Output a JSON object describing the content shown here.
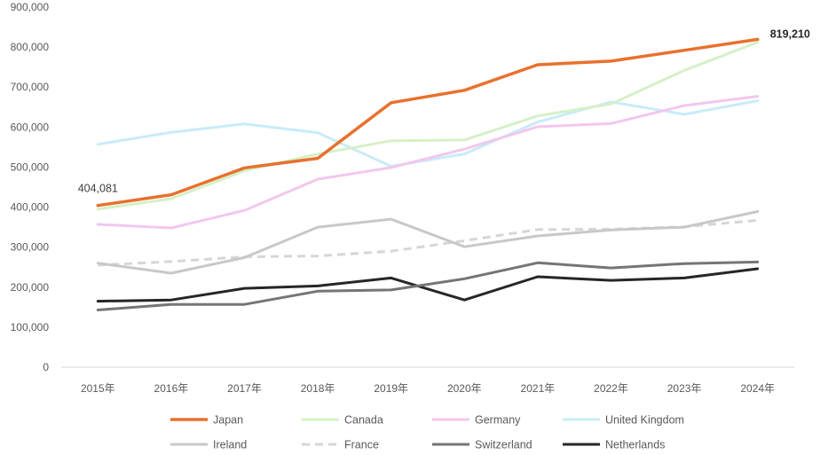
{
  "chart_data": {
    "type": "line",
    "title": "",
    "xlabel": "",
    "ylabel": "",
    "ylim": [
      0,
      900000
    ],
    "yticks": [
      0,
      100000,
      200000,
      300000,
      400000,
      500000,
      600000,
      700000,
      800000,
      900000
    ],
    "ytick_labels": [
      "0",
      "100,000",
      "200,000",
      "300,000",
      "400,000",
      "500,000",
      "600,000",
      "700,000",
      "800,000",
      "900,000"
    ],
    "categories": [
      "2015年",
      "2016年",
      "2017年",
      "2018年",
      "2019年",
      "2020年",
      "2021年",
      "2022年",
      "2023年",
      "2024年"
    ],
    "grid": false,
    "legend_position": "bottom",
    "series": [
      {
        "name": "Japan",
        "color": "#E8712E",
        "dash": false,
        "width": 3.5,
        "values": [
          404081,
          431000,
          498000,
          522000,
          661000,
          692000,
          756000,
          765000,
          792000,
          819210
        ]
      },
      {
        "name": "Canada",
        "color": "#D6F0C8",
        "dash": false,
        "width": 3,
        "values": [
          395000,
          421000,
          491000,
          533000,
          566000,
          568000,
          628000,
          658000,
          742000,
          812000
        ]
      },
      {
        "name": "Germany",
        "color": "#F2C7EE",
        "dash": false,
        "width": 3,
        "values": [
          357000,
          348000,
          392000,
          470000,
          499000,
          545000,
          601000,
          609000,
          654000,
          677000
        ]
      },
      {
        "name": "United Kingdom",
        "color": "#C9ECF8",
        "dash": false,
        "width": 3,
        "values": [
          557000,
          587000,
          608000,
          586000,
          502000,
          533000,
          613000,
          663000,
          632000,
          666000
        ]
      },
      {
        "name": "Ireland",
        "color": "#C8C8C8",
        "dash": false,
        "width": 3,
        "values": [
          260000,
          235000,
          274000,
          350000,
          370000,
          301000,
          328000,
          343000,
          350000,
          389000
        ]
      },
      {
        "name": "France",
        "color": "#D6D6D6",
        "dash": true,
        "width": 3,
        "values": [
          255000,
          264000,
          276000,
          278000,
          290000,
          316000,
          344000,
          345000,
          351000,
          367000
        ]
      },
      {
        "name": "Switzerland",
        "color": "#757575",
        "dash": false,
        "width": 3,
        "values": [
          143000,
          157000,
          157000,
          190000,
          193000,
          221000,
          261000,
          248000,
          259000,
          263000
        ]
      },
      {
        "name": "Netherlands",
        "color": "#262626",
        "dash": false,
        "width": 3,
        "values": [
          165000,
          168000,
          197000,
          203000,
          223000,
          168000,
          226000,
          217000,
          223000,
          246000
        ]
      }
    ],
    "annotations": [
      {
        "series": "Japan",
        "category": "2015年",
        "text": "404,081",
        "bold": false
      },
      {
        "series": "Japan",
        "category": "2024年",
        "text": "819,210",
        "bold": true
      }
    ]
  }
}
